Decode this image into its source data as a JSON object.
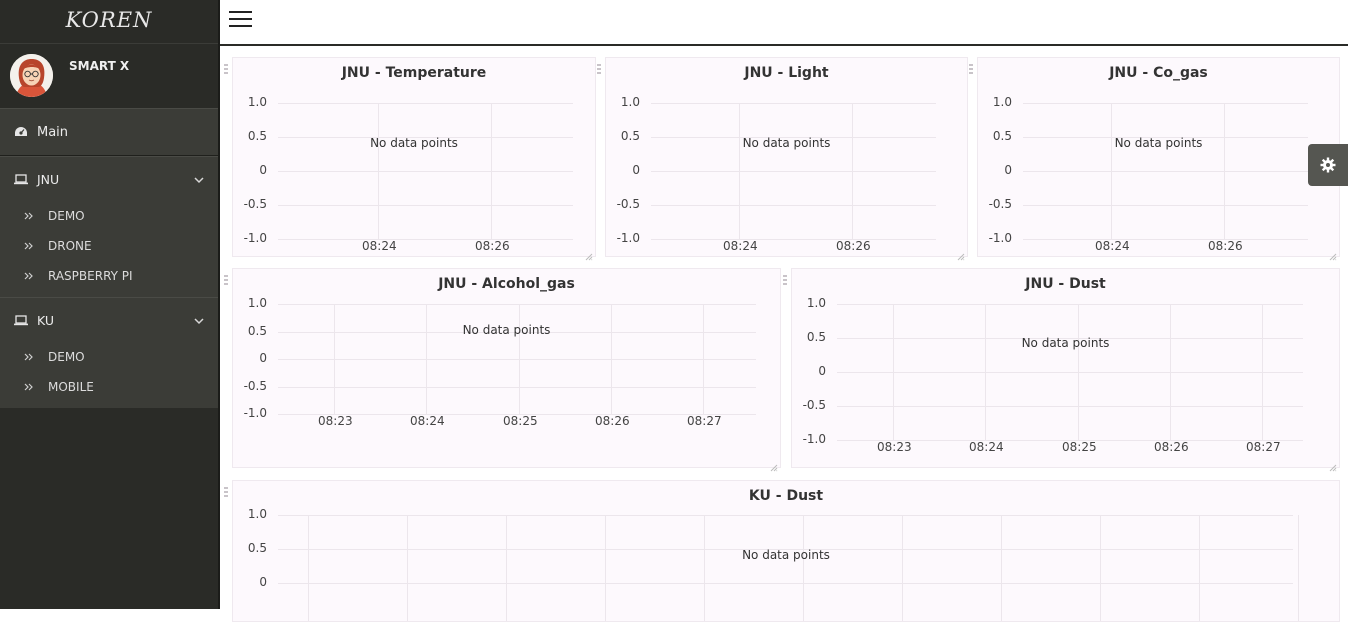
{
  "brand": "KOREN",
  "profile": {
    "name": "SMART X"
  },
  "sidebar": {
    "main_label": "Main",
    "sections": [
      {
        "label": "JNU",
        "items": [
          "DEMO",
          "DRONE",
          "RASPBERRY PI"
        ]
      },
      {
        "label": "KU",
        "items": [
          "DEMO",
          "MOBILE"
        ]
      }
    ]
  },
  "charts": [
    {
      "title": "JNU - Temperature",
      "empty_text": "No data points",
      "yticks": [
        "1.0",
        "0.5",
        "0",
        "-0.5",
        "-1.0"
      ],
      "xticks": [
        "08:24",
        "08:26"
      ]
    },
    {
      "title": "JNU - Light",
      "empty_text": "No data points",
      "yticks": [
        "1.0",
        "0.5",
        "0",
        "-0.5",
        "-1.0"
      ],
      "xticks": [
        "08:24",
        "08:26"
      ]
    },
    {
      "title": "JNU - Co_gas",
      "empty_text": "No data points",
      "yticks": [
        "1.0",
        "0.5",
        "0",
        "-0.5",
        "-1.0"
      ],
      "xticks": [
        "08:24",
        "08:26"
      ]
    },
    {
      "title": "JNU - Alcohol_gas",
      "empty_text": "No data points",
      "yticks": [
        "1.0",
        "0.5",
        "0",
        "-0.5",
        "-1.0"
      ],
      "xticks": [
        "08:23",
        "08:24",
        "08:25",
        "08:26",
        "08:27"
      ]
    },
    {
      "title": "JNU - Dust",
      "empty_text": "No data points",
      "yticks": [
        "1.0",
        "0.5",
        "0",
        "-0.5",
        "-1.0"
      ],
      "xticks": [
        "08:23",
        "08:24",
        "08:25",
        "08:26",
        "08:27"
      ]
    },
    {
      "title": "KU - Dust",
      "empty_text": "No data points",
      "yticks": [
        "1.0",
        "0.5",
        "0"
      ],
      "xticks": []
    }
  ],
  "icons": {
    "menu": "hamburger-icon",
    "main": "dashboard-icon",
    "section": "laptop-icon",
    "chevron": "chevron-down-icon",
    "sub": "double-chevron-right-icon",
    "settings": "gear-icon"
  },
  "colors": {
    "sidebar": "#2a2b27",
    "nav": "#3b3c37",
    "panel": "#fdf9fd"
  }
}
